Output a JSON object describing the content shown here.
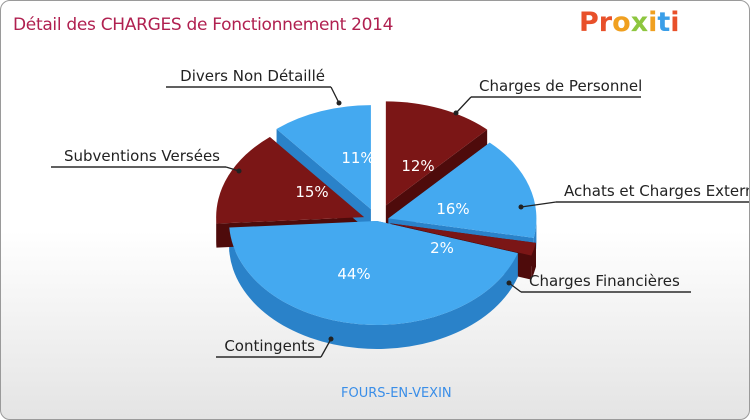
{
  "header": {
    "title": "Détail des CHARGES de Fonctionnement 2014",
    "logo_text": "Proxiti",
    "logo_letters": [
      "P",
      "r",
      "o",
      "x",
      "i",
      "t",
      "i"
    ],
    "logo_colors": [
      "#e8502a",
      "#e8502a",
      "#f0a020",
      "#8dc63f",
      "#f0a020",
      "#3a9ee8",
      "#e8502a"
    ]
  },
  "footer": {
    "commune": "FOURS-EN-VEXIN"
  },
  "colors": {
    "blue": "#44a9f0",
    "blue_dark": "#2a82c9",
    "maroon": "#7b1616",
    "maroon_dark": "#4e0b0b",
    "title": "#b02050"
  },
  "chart_data": {
    "type": "pie",
    "title": "Détail des CHARGES de Fonctionnement 2014",
    "subtitle": "FOURS-EN-VEXIN",
    "unit": "%",
    "slices": [
      {
        "label": "Charges de Personnel",
        "value": 12,
        "text": "12%",
        "color": "maroon"
      },
      {
        "label": "Achats et Charges Externes",
        "value": 16,
        "text": "16%",
        "color": "blue"
      },
      {
        "label": "Charges Financières",
        "value": 2,
        "text": "2%",
        "color": "maroon"
      },
      {
        "label": "Contingents",
        "value": 44,
        "text": "44%",
        "color": "blue"
      },
      {
        "label": "Subventions Versées",
        "value": 15,
        "text": "15%",
        "color": "maroon"
      },
      {
        "label": "Divers Non Détaillé",
        "value": 11,
        "text": "11%",
        "color": "blue"
      }
    ],
    "legend": "external-labels"
  }
}
